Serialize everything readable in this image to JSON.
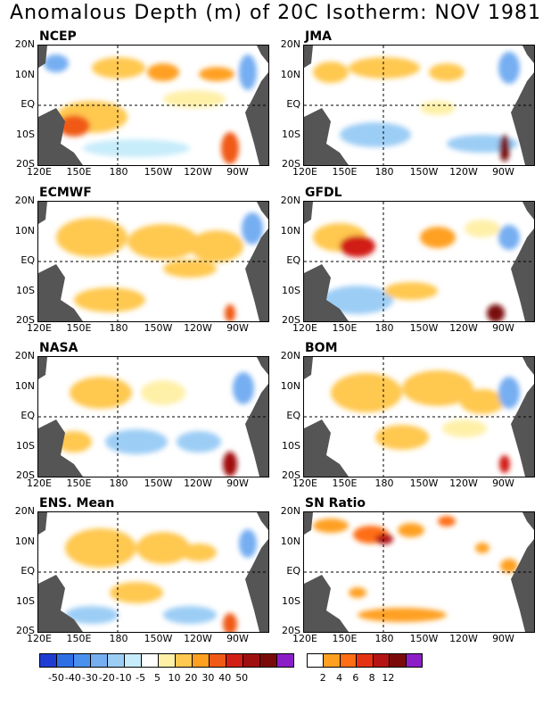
{
  "title": "Anomalous Depth (m) of 20C Isotherm: NOV 1981",
  "lat_labels": [
    "20N",
    "10N",
    "EQ",
    "10S",
    "20S"
  ],
  "lon_labels": [
    "120E",
    "150E",
    "180",
    "150W",
    "120W",
    "90W"
  ],
  "panels": [
    {
      "name": "NCEP"
    },
    {
      "name": "JMA"
    },
    {
      "name": "ECMWF"
    },
    {
      "name": "GFDL"
    },
    {
      "name": "NASA"
    },
    {
      "name": "BOM"
    },
    {
      "name": "ENS. Mean"
    },
    {
      "name": "SN Ratio"
    }
  ],
  "colorbar_anom": {
    "colors": [
      "#1e3cd2",
      "#2f6fe6",
      "#4a90ee",
      "#76aef2",
      "#9ccdf5",
      "#c7ecfa",
      "#ffffff",
      "#fff0a8",
      "#ffc850",
      "#ffa020",
      "#f05a14",
      "#d21e14",
      "#a00f0f",
      "#7a0a0a",
      "#8c1ec8"
    ],
    "labels": [
      "-50",
      "-40",
      "-30",
      "-20",
      "-10",
      "-5",
      "5",
      "10",
      "20",
      "30",
      "40",
      "50"
    ]
  },
  "colorbar_sn": {
    "colors": [
      "#ffffff",
      "#ffa020",
      "#ff6e14",
      "#e63214",
      "#b41414",
      "#7a0a0a",
      "#8c1ec8"
    ],
    "labels": [
      "2",
      "4",
      "6",
      "8",
      "12"
    ]
  }
}
